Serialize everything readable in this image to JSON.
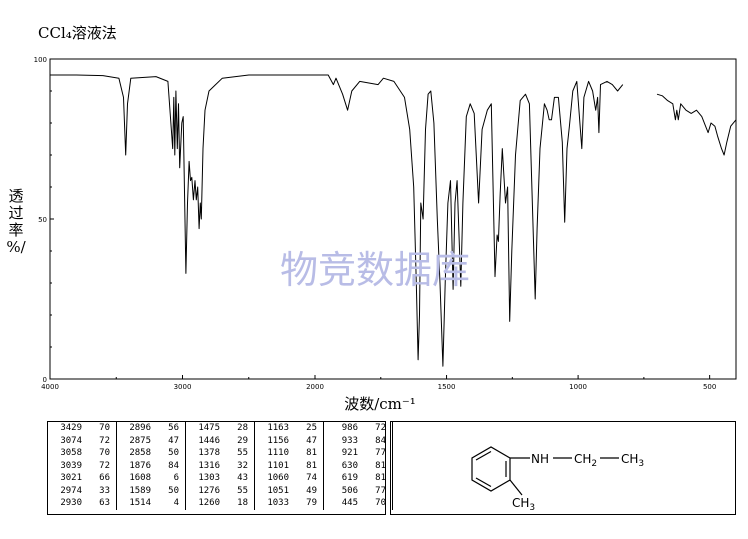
{
  "title": "CCl₄溶液法",
  "watermark": "物竞数据库",
  "chart_data": {
    "type": "line",
    "title": "",
    "xlabel": "波数/cm⁻¹",
    "ylabel": [
      "透",
      "过",
      "率",
      "%/"
    ],
    "xlim": [
      4000,
      400
    ],
    "ylim": [
      0,
      100
    ],
    "x_ticks": [
      4000,
      3000,
      2000,
      1500,
      1000,
      500
    ],
    "y_ticks": [
      0,
      50,
      100
    ],
    "grid": false,
    "series": [
      {
        "points": [
          [
            4000,
            95
          ],
          [
            3800,
            95
          ],
          [
            3600,
            94.8
          ],
          [
            3480,
            94
          ],
          [
            3445,
            88
          ],
          [
            3429,
            70
          ],
          [
            3415,
            86
          ],
          [
            3390,
            94
          ],
          [
            3200,
            94.5
          ],
          [
            3110,
            93
          ],
          [
            3074,
            72
          ],
          [
            3066,
            88
          ],
          [
            3058,
            70
          ],
          [
            3050,
            90
          ],
          [
            3039,
            72
          ],
          [
            3030,
            86
          ],
          [
            3021,
            66
          ],
          [
            3005,
            80
          ],
          [
            2995,
            82
          ],
          [
            2974,
            33
          ],
          [
            2962,
            55
          ],
          [
            2950,
            68
          ],
          [
            2940,
            62
          ],
          [
            2930,
            63
          ],
          [
            2918,
            56
          ],
          [
            2906,
            62
          ],
          [
            2896,
            56
          ],
          [
            2885,
            60
          ],
          [
            2875,
            47
          ],
          [
            2866,
            55
          ],
          [
            2858,
            50
          ],
          [
            2845,
            72
          ],
          [
            2830,
            84
          ],
          [
            2800,
            90
          ],
          [
            2750,
            92
          ],
          [
            2700,
            94
          ],
          [
            2600,
            94.5
          ],
          [
            2500,
            95
          ],
          [
            2300,
            95
          ],
          [
            2100,
            95
          ],
          [
            1950,
            95
          ],
          [
            1930,
            92
          ],
          [
            1920,
            94
          ],
          [
            1895,
            89
          ],
          [
            1876,
            84
          ],
          [
            1860,
            90
          ],
          [
            1830,
            93
          ],
          [
            1760,
            92
          ],
          [
            1740,
            94
          ],
          [
            1700,
            93
          ],
          [
            1660,
            88
          ],
          [
            1640,
            78
          ],
          [
            1625,
            60
          ],
          [
            1620,
            45
          ],
          [
            1615,
            30
          ],
          [
            1608,
            6
          ],
          [
            1603,
            20
          ],
          [
            1598,
            55
          ],
          [
            1589,
            50
          ],
          [
            1580,
            78
          ],
          [
            1570,
            89
          ],
          [
            1560,
            90
          ],
          [
            1548,
            80
          ],
          [
            1535,
            50
          ],
          [
            1525,
            30
          ],
          [
            1514,
            4
          ],
          [
            1505,
            30
          ],
          [
            1495,
            55
          ],
          [
            1485,
            62
          ],
          [
            1475,
            28
          ],
          [
            1468,
            55
          ],
          [
            1460,
            62
          ],
          [
            1446,
            29
          ],
          [
            1438,
            55
          ],
          [
            1425,
            82
          ],
          [
            1410,
            86
          ],
          [
            1395,
            83
          ],
          [
            1378,
            55
          ],
          [
            1365,
            78
          ],
          [
            1345,
            84
          ],
          [
            1330,
            86
          ],
          [
            1316,
            32
          ],
          [
            1308,
            45
          ],
          [
            1303,
            43
          ],
          [
            1296,
            58
          ],
          [
            1288,
            72
          ],
          [
            1276,
            55
          ],
          [
            1268,
            60
          ],
          [
            1260,
            18
          ],
          [
            1252,
            40
          ],
          [
            1238,
            70
          ],
          [
            1220,
            87
          ],
          [
            1200,
            89
          ],
          [
            1185,
            86
          ],
          [
            1163,
            25
          ],
          [
            1156,
            47
          ],
          [
            1145,
            72
          ],
          [
            1128,
            86
          ],
          [
            1118,
            84
          ],
          [
            1110,
            81
          ],
          [
            1101,
            81
          ],
          [
            1090,
            88
          ],
          [
            1075,
            88
          ],
          [
            1060,
            74
          ],
          [
            1051,
            49
          ],
          [
            1042,
            72
          ],
          [
            1033,
            79
          ],
          [
            1020,
            90
          ],
          [
            1005,
            93
          ],
          [
            986,
            72
          ],
          [
            978,
            88
          ],
          [
            960,
            93
          ],
          [
            945,
            90
          ],
          [
            933,
            84
          ],
          [
            926,
            88
          ],
          [
            921,
            77
          ],
          [
            915,
            92
          ],
          [
            890,
            93
          ],
          [
            870,
            92
          ],
          [
            850,
            90
          ],
          [
            830,
            92
          ]
        ]
      },
      {
        "points": [
          [
            700,
            89
          ],
          [
            680,
            88.5
          ],
          [
            660,
            87
          ],
          [
            640,
            86
          ],
          [
            630,
            81
          ],
          [
            625,
            84
          ],
          [
            619,
            81
          ],
          [
            610,
            86
          ],
          [
            590,
            84
          ],
          [
            570,
            83
          ],
          [
            550,
            84
          ],
          [
            530,
            82
          ],
          [
            506,
            77
          ],
          [
            495,
            80
          ],
          [
            480,
            79
          ],
          [
            470,
            76
          ],
          [
            455,
            72
          ],
          [
            445,
            70
          ],
          [
            435,
            74
          ],
          [
            420,
            79
          ],
          [
            400,
            81
          ]
        ]
      }
    ]
  },
  "peak_table": {
    "columns": [
      [
        [
          "3429",
          "70"
        ],
        [
          "3074",
          "72"
        ],
        [
          "3058",
          "70"
        ],
        [
          "3039",
          "72"
        ],
        [
          "3021",
          "66"
        ],
        [
          "2974",
          "33"
        ],
        [
          "2930",
          "63"
        ]
      ],
      [
        [
          "2896",
          "56"
        ],
        [
          "2875",
          "47"
        ],
        [
          "2858",
          "50"
        ],
        [
          "1876",
          "84"
        ],
        [
          "1608",
          "6"
        ],
        [
          "1589",
          "50"
        ],
        [
          "1514",
          "4"
        ]
      ],
      [
        [
          "1475",
          "28"
        ],
        [
          "1446",
          "29"
        ],
        [
          "1378",
          "55"
        ],
        [
          "1316",
          "32"
        ],
        [
          "1303",
          "43"
        ],
        [
          "1276",
          "55"
        ],
        [
          "1260",
          "18"
        ]
      ],
      [
        [
          "1163",
          "25"
        ],
        [
          "1156",
          "47"
        ],
        [
          "1110",
          "81"
        ],
        [
          "1101",
          "81"
        ],
        [
          "1060",
          "74"
        ],
        [
          "1051",
          "49"
        ],
        [
          "1033",
          "79"
        ]
      ],
      [
        [
          "986",
          "72"
        ],
        [
          "933",
          "84"
        ],
        [
          "921",
          "77"
        ],
        [
          "630",
          "81"
        ],
        [
          "619",
          "81"
        ],
        [
          "506",
          "77"
        ],
        [
          "445",
          "70"
        ]
      ]
    ]
  },
  "structure": {
    "nh_label": "NH",
    "ch2_label": "CH",
    "ch2_sub": "2",
    "ch3_label": "CH",
    "ch3_sub": "3",
    "ring_ch3_label": "CH",
    "ring_ch3_sub": "3"
  }
}
